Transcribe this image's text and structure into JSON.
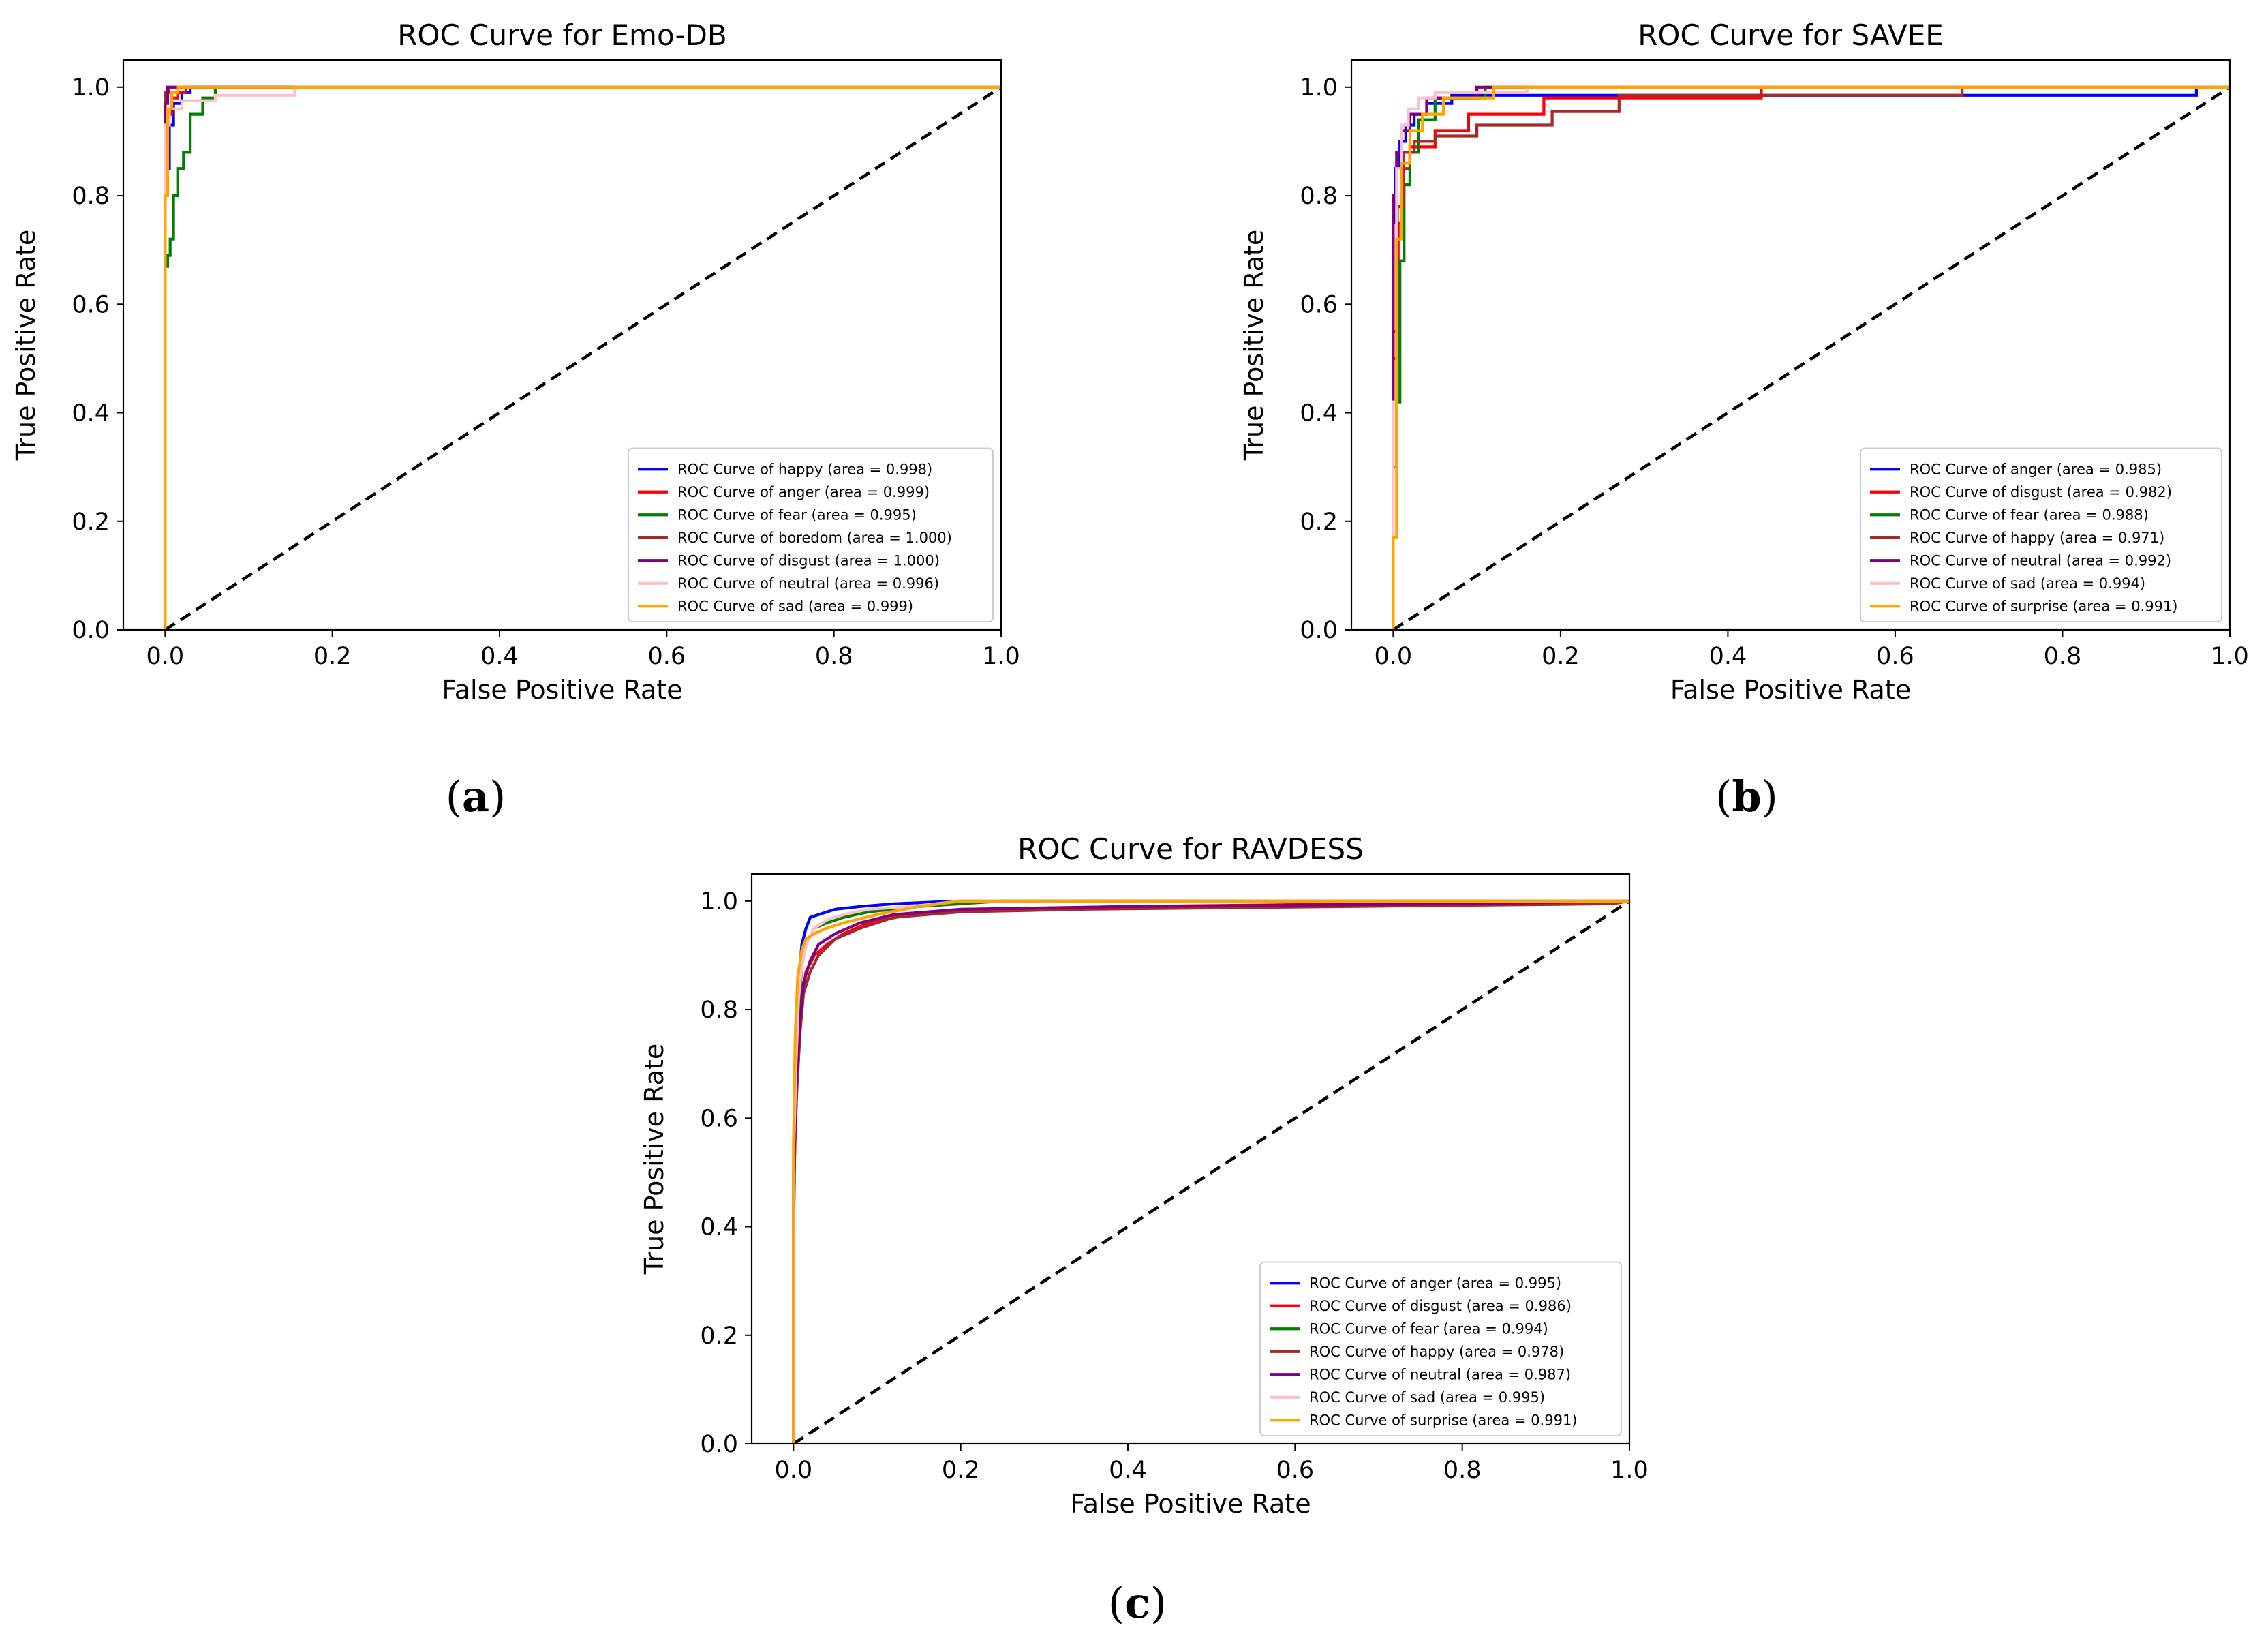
{
  "figure": {
    "captions": {
      "a": {
        "open": "(",
        "letter": "a",
        "close": ")"
      },
      "b": {
        "open": "(",
        "letter": "b",
        "close": ")"
      },
      "c": {
        "open": "(",
        "letter": "c",
        "close": ")"
      }
    }
  },
  "chart_data": [
    {
      "id": "a",
      "type": "line",
      "title": "ROC Curve for Emo-DB",
      "xlabel": "False Positive Rate",
      "ylabel": "True Positive Rate",
      "xlim": [
        -0.05,
        1.0
      ],
      "ylim": [
        0.0,
        1.05
      ],
      "xticks": [
        "0.0",
        "0.2",
        "0.4",
        "0.6",
        "0.8",
        "1.0"
      ],
      "yticks": [
        "0.0",
        "0.2",
        "0.4",
        "0.6",
        "0.8",
        "1.0"
      ],
      "legend_position": "lower-right",
      "diagonal": {
        "style": "dashed",
        "color": "#000000",
        "x": [
          0,
          1
        ],
        "y": [
          0,
          1
        ]
      },
      "series": [
        {
          "name": "happy",
          "label": "ROC Curve of happy (area = 0.998)",
          "color": "#0000ff",
          "x": [
            0,
            0,
            0.005,
            0.005,
            0.01,
            0.01,
            0.02,
            0.02,
            0.03,
            0.03,
            1
          ],
          "y": [
            0,
            0.85,
            0.85,
            0.93,
            0.93,
            0.97,
            0.97,
            0.99,
            0.99,
            1.0,
            1.0
          ]
        },
        {
          "name": "anger",
          "label": "ROC Curve of anger (area = 0.999)",
          "color": "#ff0000",
          "x": [
            0,
            0,
            0.003,
            0.003,
            0.008,
            0.008,
            0.015,
            0.015,
            0.025,
            0.025,
            1
          ],
          "y": [
            0,
            0.9,
            0.9,
            0.95,
            0.95,
            0.98,
            0.98,
            0.99,
            0.99,
            1.0,
            1.0
          ]
        },
        {
          "name": "fear",
          "label": "ROC Curve of fear (area = 0.995)",
          "color": "#008000",
          "x": [
            0,
            0,
            0.003,
            0.003,
            0.006,
            0.006,
            0.01,
            0.01,
            0.015,
            0.015,
            0.022,
            0.022,
            0.03,
            0.03,
            0.045,
            0.045,
            0.06,
            0.06,
            1
          ],
          "y": [
            0,
            0.67,
            0.67,
            0.69,
            0.69,
            0.72,
            0.72,
            0.8,
            0.8,
            0.85,
            0.85,
            0.88,
            0.88,
            0.95,
            0.95,
            0.98,
            0.98,
            1.0,
            1.0
          ]
        },
        {
          "name": "boredom",
          "label": "ROC Curve of boredom (area = 1.000)",
          "color": "#a52a2a",
          "x": [
            0,
            0,
            0.004,
            0.004,
            1
          ],
          "y": [
            0,
            0.99,
            0.99,
            1.0,
            1.0
          ]
        },
        {
          "name": "disgust",
          "label": "ROC Curve of disgust (area = 1.000)",
          "color": "#800080",
          "x": [
            0,
            0,
            0.003,
            0.003,
            1
          ],
          "y": [
            0,
            0.97,
            0.97,
            1.0,
            1.0
          ]
        },
        {
          "name": "neutral",
          "label": "ROC Curve of neutral (area = 0.996)",
          "color": "#ffc0cb",
          "x": [
            0,
            0,
            0.005,
            0.005,
            0.02,
            0.02,
            0.06,
            0.06,
            0.155,
            0.155,
            1
          ],
          "y": [
            0,
            0.93,
            0.93,
            0.96,
            0.96,
            0.975,
            0.975,
            0.985,
            0.985,
            1.0,
            1.0
          ]
        },
        {
          "name": "sad",
          "label": "ROC Curve of sad (area = 0.999)",
          "color": "#ffa500",
          "x": [
            0,
            0,
            0.003,
            0.003,
            0.008,
            0.008,
            0.015,
            0.015,
            1
          ],
          "y": [
            0,
            0.8,
            0.8,
            0.96,
            0.96,
            0.99,
            0.99,
            1.0,
            1.0
          ]
        }
      ]
    },
    {
      "id": "b",
      "type": "line",
      "title": "ROC Curve for SAVEE",
      "xlabel": "False Positive Rate",
      "ylabel": "True Positive Rate",
      "xlim": [
        -0.05,
        1.0
      ],
      "ylim": [
        0.0,
        1.05
      ],
      "xticks": [
        "0.0",
        "0.2",
        "0.4",
        "0.6",
        "0.8",
        "1.0"
      ],
      "yticks": [
        "0.0",
        "0.2",
        "0.4",
        "0.6",
        "0.8",
        "1.0"
      ],
      "legend_position": "lower-right",
      "diagonal": {
        "style": "dashed",
        "color": "#000000",
        "x": [
          0,
          1
        ],
        "y": [
          0,
          1
        ]
      },
      "series": [
        {
          "name": "anger",
          "label": "ROC Curve of anger (area = 0.985)",
          "color": "#0000ff",
          "x": [
            0,
            0,
            0.003,
            0.003,
            0.008,
            0.008,
            0.015,
            0.015,
            0.025,
            0.025,
            0.04,
            0.04,
            0.07,
            0.07,
            0.96,
            0.96,
            1
          ],
          "y": [
            0,
            0.75,
            0.75,
            0.85,
            0.85,
            0.9,
            0.9,
            0.93,
            0.93,
            0.95,
            0.95,
            0.97,
            0.97,
            0.985,
            0.985,
            1.0,
            1.0
          ]
        },
        {
          "name": "disgust",
          "label": "ROC Curve of disgust (area = 0.982)",
          "color": "#ff0000",
          "x": [
            0,
            0,
            0.006,
            0.006,
            0.012,
            0.012,
            0.02,
            0.02,
            0.05,
            0.05,
            0.09,
            0.09,
            0.18,
            0.18,
            0.44,
            0.44,
            1
          ],
          "y": [
            0,
            0.5,
            0.5,
            0.75,
            0.75,
            0.85,
            0.85,
            0.89,
            0.89,
            0.92,
            0.92,
            0.95,
            0.95,
            0.98,
            0.98,
            1.0,
            1.0
          ]
        },
        {
          "name": "fear",
          "label": "ROC Curve of fear (area = 0.988)",
          "color": "#008000",
          "x": [
            0,
            0,
            0.004,
            0.004,
            0.008,
            0.008,
            0.013,
            0.013,
            0.02,
            0.02,
            0.03,
            0.03,
            0.05,
            0.05,
            0.11,
            0.11,
            1
          ],
          "y": [
            0,
            0.3,
            0.3,
            0.42,
            0.42,
            0.68,
            0.68,
            0.82,
            0.82,
            0.88,
            0.88,
            0.94,
            0.94,
            0.98,
            0.98,
            1.0,
            1.0
          ]
        },
        {
          "name": "happy",
          "label": "ROC Curve of happy (area = 0.971)",
          "color": "#a52a2a",
          "x": [
            0,
            0,
            0.005,
            0.005,
            0.012,
            0.012,
            0.025,
            0.025,
            0.05,
            0.05,
            0.1,
            0.1,
            0.19,
            0.19,
            0.27,
            0.27,
            0.68,
            0.68,
            1
          ],
          "y": [
            0,
            0.55,
            0.55,
            0.78,
            0.78,
            0.88,
            0.88,
            0.9,
            0.9,
            0.91,
            0.91,
            0.93,
            0.93,
            0.955,
            0.955,
            0.985,
            0.985,
            1.0,
            1.0
          ]
        },
        {
          "name": "neutral",
          "label": "ROC Curve of neutral (area = 0.992)",
          "color": "#800080",
          "x": [
            0,
            0,
            0.004,
            0.004,
            0.01,
            0.01,
            0.02,
            0.02,
            0.04,
            0.04,
            0.1,
            0.1,
            1
          ],
          "y": [
            0,
            0.8,
            0.8,
            0.88,
            0.88,
            0.92,
            0.92,
            0.95,
            0.95,
            0.98,
            0.98,
            1.0,
            1.0
          ]
        },
        {
          "name": "sad",
          "label": "ROC Curve of sad (area = 0.994)",
          "color": "#ffc0cb",
          "x": [
            0,
            0,
            0.004,
            0.004,
            0.01,
            0.01,
            0.018,
            0.018,
            0.03,
            0.03,
            0.05,
            0.05,
            0.16,
            0.16,
            1
          ],
          "y": [
            0,
            0.42,
            0.42,
            0.85,
            0.85,
            0.93,
            0.93,
            0.96,
            0.96,
            0.98,
            0.98,
            0.99,
            0.99,
            1.0,
            1.0
          ]
        },
        {
          "name": "surprise",
          "label": "ROC Curve of surprise (area = 0.991)",
          "color": "#ffa500",
          "x": [
            0,
            0,
            0.004,
            0.004,
            0.01,
            0.01,
            0.02,
            0.02,
            0.035,
            0.035,
            0.06,
            0.06,
            0.12,
            0.12,
            1
          ],
          "y": [
            0,
            0.17,
            0.17,
            0.72,
            0.72,
            0.86,
            0.86,
            0.92,
            0.92,
            0.95,
            0.95,
            0.98,
            0.98,
            1.0,
            1.0
          ]
        }
      ]
    },
    {
      "id": "c",
      "type": "line",
      "title": "ROC Curve for RAVDESS",
      "xlabel": "False Positive Rate",
      "ylabel": "True Positive Rate",
      "xlim": [
        -0.05,
        1.0
      ],
      "ylim": [
        0.0,
        1.05
      ],
      "xticks": [
        "0.0",
        "0.2",
        "0.4",
        "0.6",
        "0.8",
        "1.0"
      ],
      "yticks": [
        "0.0",
        "0.2",
        "0.4",
        "0.6",
        "0.8",
        "1.0"
      ],
      "legend_position": "lower-right",
      "diagonal": {
        "style": "dashed",
        "color": "#000000",
        "x": [
          0,
          1
        ],
        "y": [
          0,
          1
        ]
      },
      "series": [
        {
          "name": "anger",
          "label": "ROC Curve of anger (area = 0.995)",
          "color": "#0000ff",
          "x": [
            0,
            0,
            0.002,
            0.004,
            0.006,
            0.01,
            0.015,
            0.02,
            0.03,
            0.05,
            0.08,
            0.12,
            0.2,
            1
          ],
          "y": [
            0,
            0.38,
            0.6,
            0.75,
            0.85,
            0.92,
            0.95,
            0.97,
            0.975,
            0.985,
            0.99,
            0.995,
            1.0,
            1.0
          ]
        },
        {
          "name": "disgust",
          "label": "ROC Curve of disgust (area = 0.986)",
          "color": "#ff0000",
          "x": [
            0,
            0,
            0.003,
            0.006,
            0.01,
            0.015,
            0.025,
            0.04,
            0.06,
            0.09,
            0.14,
            0.25,
            0.4,
            0.98,
            1
          ],
          "y": [
            0,
            0.45,
            0.62,
            0.74,
            0.82,
            0.87,
            0.9,
            0.92,
            0.94,
            0.96,
            0.975,
            0.985,
            0.99,
            1.0,
            1.0
          ]
        },
        {
          "name": "fear",
          "label": "ROC Curve of fear (area = 0.994)",
          "color": "#008000",
          "x": [
            0,
            0,
            0.003,
            0.006,
            0.01,
            0.015,
            0.025,
            0.04,
            0.06,
            0.09,
            0.15,
            0.25,
            1
          ],
          "y": [
            0,
            0.5,
            0.68,
            0.8,
            0.88,
            0.92,
            0.95,
            0.96,
            0.97,
            0.98,
            0.99,
            1.0,
            1.0
          ]
        },
        {
          "name": "happy",
          "label": "ROC Curve of happy (area = 0.978)",
          "color": "#a52a2a",
          "x": [
            0,
            0,
            0.004,
            0.008,
            0.012,
            0.02,
            0.03,
            0.05,
            0.08,
            0.12,
            0.2,
            0.35,
            0.98,
            1
          ],
          "y": [
            0,
            0.48,
            0.65,
            0.76,
            0.83,
            0.87,
            0.9,
            0.93,
            0.95,
            0.97,
            0.98,
            0.985,
            0.995,
            1.0
          ]
        },
        {
          "name": "neutral",
          "label": "ROC Curve of neutral (area = 0.987)",
          "color": "#800080",
          "x": [
            0,
            0,
            0.004,
            0.008,
            0.012,
            0.02,
            0.03,
            0.05,
            0.08,
            0.12,
            0.2,
            0.4,
            0.8,
            1
          ],
          "y": [
            0,
            0.5,
            0.68,
            0.78,
            0.85,
            0.89,
            0.92,
            0.94,
            0.96,
            0.975,
            0.985,
            0.99,
            0.995,
            1.0
          ]
        },
        {
          "name": "sad",
          "label": "ROC Curve of sad (area = 0.995)",
          "color": "#ffc0cb",
          "x": [
            0,
            0,
            0.003,
            0.006,
            0.01,
            0.015,
            0.025,
            0.04,
            0.06,
            0.09,
            0.14,
            0.2,
            1
          ],
          "y": [
            0,
            0.52,
            0.7,
            0.82,
            0.88,
            0.92,
            0.95,
            0.965,
            0.975,
            0.985,
            0.99,
            1.0,
            1.0
          ]
        },
        {
          "name": "surprise",
          "label": "ROC Curve of surprise (area = 0.991)",
          "color": "#ffa500",
          "x": [
            0,
            0,
            0.002,
            0.005,
            0.01,
            0.015,
            0.025,
            0.04,
            0.06,
            0.1,
            0.15,
            0.2,
            1
          ],
          "y": [
            0,
            0.55,
            0.75,
            0.86,
            0.91,
            0.93,
            0.94,
            0.95,
            0.96,
            0.975,
            0.99,
            1.0,
            1.0
          ]
        }
      ]
    }
  ]
}
